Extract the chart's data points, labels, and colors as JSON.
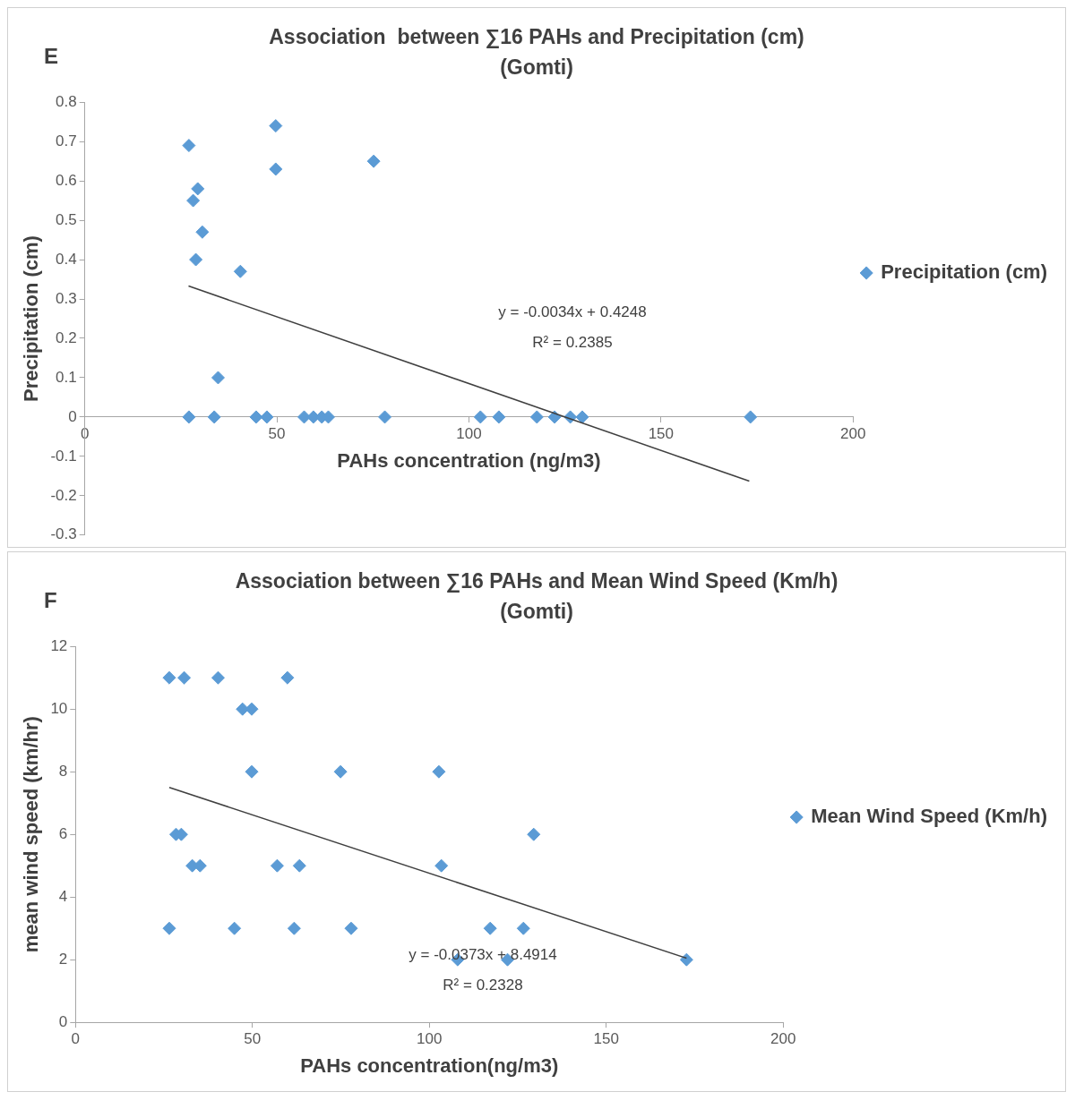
{
  "chart_data": [
    {
      "type": "scatter",
      "title": "Association  between ∑16 PAHs and Precipitation (cm)",
      "subtitle": "(Gomti)",
      "xlabel": "PAHs concentration (ng/m3)",
      "ylabel": "Precipitation (cm)",
      "annotations": [
        "E",
        "y = -0.0034x + 0.4248",
        "R² = 0.2385"
      ],
      "xlim": [
        0,
        200
      ],
      "xticks": [
        0,
        50,
        100,
        150,
        200
      ],
      "ylim": [
        -0.3,
        0.8
      ],
      "yticks": [
        -0.3,
        -0.2,
        -0.1,
        0,
        0.1,
        0.2,
        0.3,
        0.4,
        0.5,
        0.6,
        0.7,
        0.8
      ],
      "legend": "right",
      "marker": "diamond",
      "series": [
        {
          "name": "Precipitation (cm)",
          "color": "#5b9bd5",
          "x": [
            27.1,
            49.7,
            49.7,
            75.2,
            29.4,
            28.2,
            30.6,
            28.9,
            40.5,
            34.7,
            27.1,
            33.7,
            44.6,
            47.4,
            57.1,
            59.5,
            61.7,
            63.4,
            78.1,
            103.0,
            107.8,
            117.7,
            122.3,
            126.4,
            129.5,
            173.3
          ],
          "values": [
            0.69,
            0.74,
            0.63,
            0.65,
            0.58,
            0.55,
            0.47,
            0.4,
            0.37,
            0.1,
            0,
            0,
            0,
            0,
            0,
            0,
            0,
            0,
            0,
            0,
            0,
            0,
            0,
            0,
            0,
            0
          ]
        },
        {
          "type": "line",
          "marker": "none",
          "color": "#404040",
          "x": [
            27,
            173
          ],
          "values": [
            0.333,
            -0.163
          ]
        }
      ]
    },
    {
      "type": "scatter",
      "title": "Association between ∑16 PAHs and Mean Wind Speed (Km/h)",
      "subtitle": "(Gomti)",
      "xlabel": "PAHs concentration(ng/m3)",
      "ylabel": "mean wind speed (km/hr)",
      "annotations": [
        "F",
        "y = -0.0373x + 8.4914",
        "R² = 0.2328"
      ],
      "xlim": [
        0,
        200
      ],
      "xticks": [
        0,
        50,
        100,
        150,
        200
      ],
      "ylim": [
        0,
        12
      ],
      "yticks": [
        0,
        2,
        4,
        6,
        8,
        10,
        12
      ],
      "legend": "right",
      "marker": "diamond",
      "series": [
        {
          "name": "Mean Wind Speed (Km/h)",
          "color": "#5b9bd5",
          "x": [
            26.5,
            30.7,
            40.3,
            59.9,
            47.2,
            49.8,
            49.8,
            74.9,
            102.7,
            28.4,
            29.9,
            129.5,
            33.0,
            35.2,
            57.0,
            63.3,
            103.4,
            26.5,
            44.9,
            61.8,
            77.9,
            117.2,
            126.6,
            108.0,
            122.1,
            172.7
          ],
          "values": [
            11,
            11,
            11,
            11,
            10,
            10,
            8,
            8,
            8,
            6,
            6,
            6,
            5,
            5,
            5,
            5,
            5,
            3,
            3,
            3,
            3,
            3,
            3,
            2,
            2,
            2
          ]
        },
        {
          "type": "line",
          "marker": "none",
          "color": "#404040",
          "x": [
            26.5,
            172.7
          ],
          "values": [
            7.5,
            2.05
          ]
        }
      ]
    }
  ]
}
